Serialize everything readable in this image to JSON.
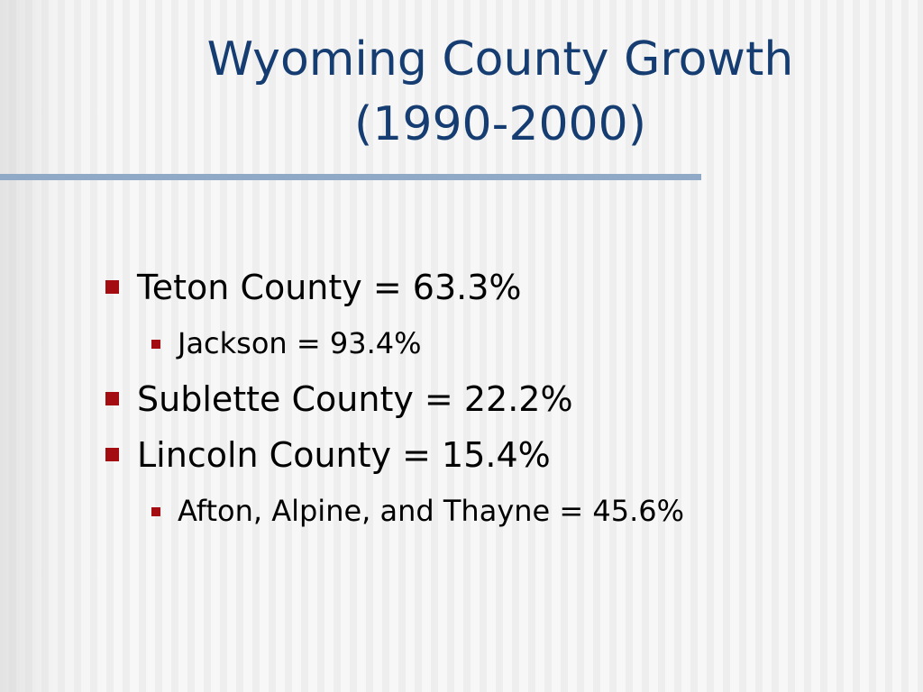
{
  "header": {
    "title": "Wyoming County Growth (1990-2000)"
  },
  "bullets": [
    {
      "text": "Teton County = 63.3%",
      "sub": [
        {
          "text": "Jackson = 93.4%"
        }
      ]
    },
    {
      "text": "Sublette County = 22.2%",
      "sub": []
    },
    {
      "text": "Lincoln County = 15.4%",
      "sub": [
        {
          "text": "Afton, Alpine, and Thayne = 45.6%"
        }
      ]
    }
  ]
}
